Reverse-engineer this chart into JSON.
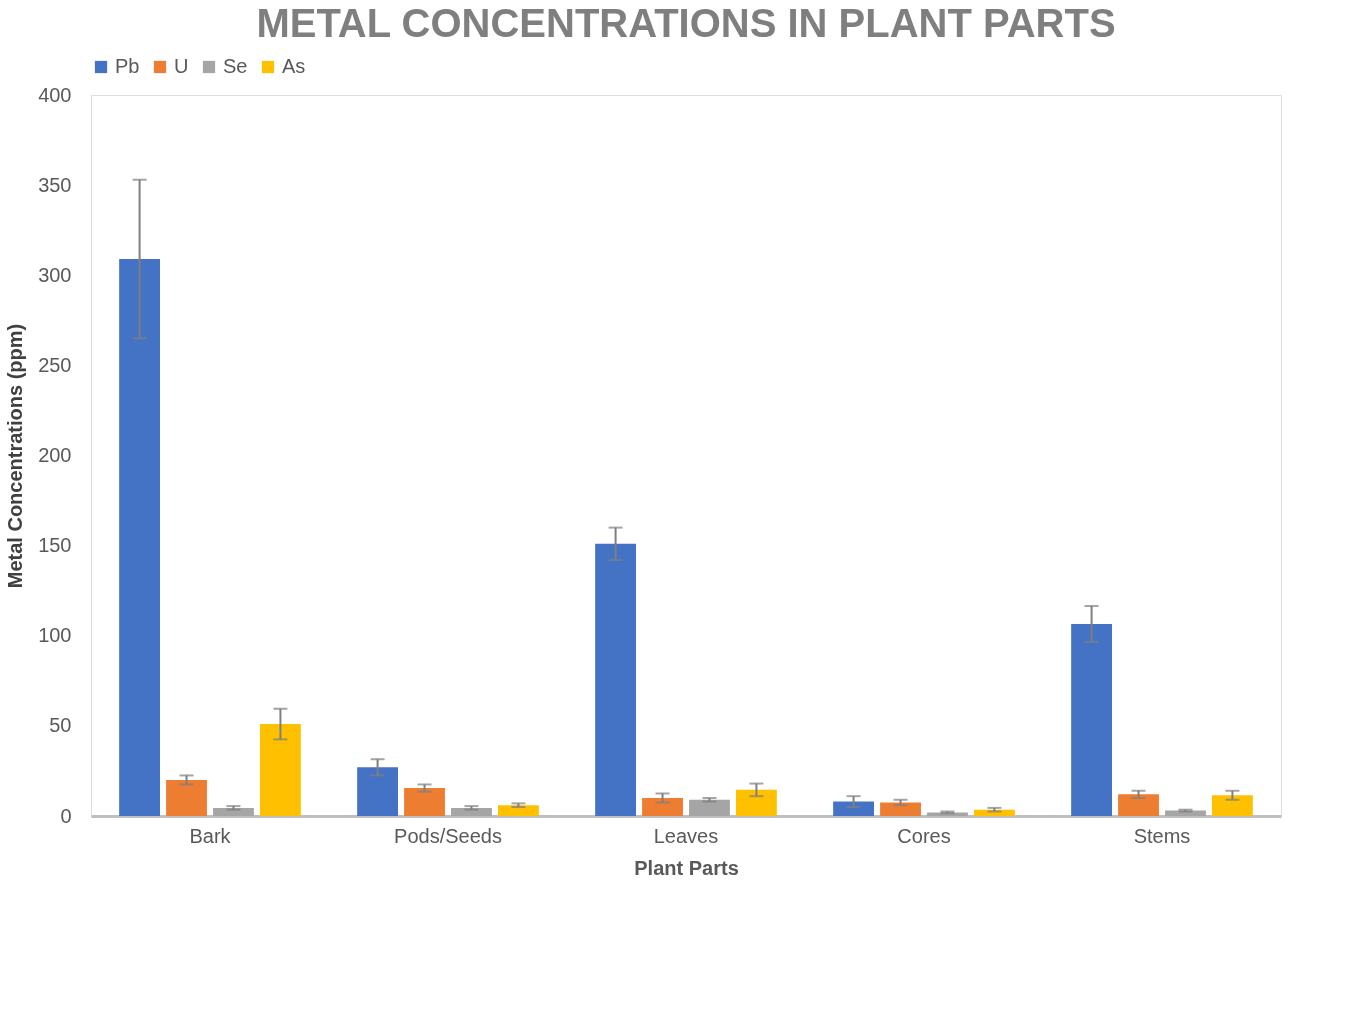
{
  "chart_data": {
    "type": "bar",
    "title": "METAL CONCENTRATIONS IN PLANT PARTS",
    "xlabel": "Plant Parts",
    "ylabel": "Metal Concentrations (ppm)",
    "categories": [
      "Bark",
      "Pods/Seeds",
      "Leaves",
      "Cores",
      "Stems"
    ],
    "series": [
      {
        "name": "Pb",
        "color": "#4472c4",
        "values": [
          309,
          27,
          151,
          8,
          106.5
        ],
        "errors": [
          44,
          4.5,
          9,
          3,
          10
        ]
      },
      {
        "name": "U",
        "color": "#ed7d31",
        "values": [
          20,
          15.5,
          10,
          7.5,
          12
        ],
        "errors": [
          2.5,
          2,
          2.5,
          1.5,
          2
        ]
      },
      {
        "name": "Se",
        "color": "#a5a5a5",
        "values": [
          4.5,
          4.5,
          9,
          2,
          3
        ],
        "errors": [
          1,
          1,
          1,
          0.5,
          0.5
        ]
      },
      {
        "name": "As",
        "color": "#ffc000",
        "values": [
          51,
          6,
          14.5,
          3.5,
          11.5
        ],
        "errors": [
          8.5,
          1,
          3.5,
          1,
          2.5
        ]
      }
    ],
    "ylim": [
      0,
      400
    ],
    "yticks": [
      0,
      50,
      100,
      150,
      200,
      250,
      300,
      350,
      400
    ],
    "grid": false,
    "legend": "top"
  }
}
